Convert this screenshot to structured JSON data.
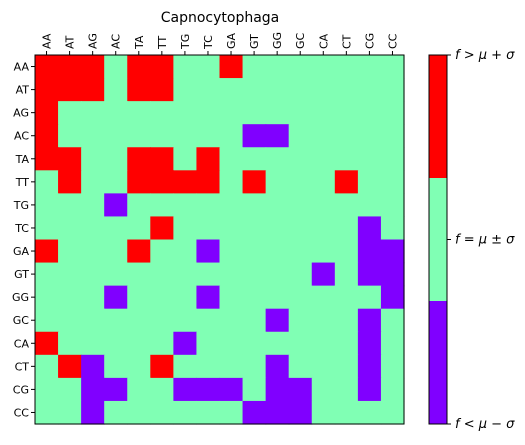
{
  "chart_data": {
    "type": "heatmap",
    "title": "Capnocytophaga",
    "x_categories": [
      "AA",
      "AT",
      "AG",
      "AC",
      "TA",
      "TT",
      "TG",
      "TC",
      "GA",
      "GT",
      "GG",
      "GC",
      "CA",
      "CT",
      "CG",
      "CC"
    ],
    "y_categories": [
      "AA",
      "AT",
      "AG",
      "AC",
      "TA",
      "TT",
      "TG",
      "TC",
      "GA",
      "GT",
      "GG",
      "GC",
      "CA",
      "CT",
      "CG",
      "CC"
    ],
    "value_encoding": {
      "-1": "f < μ − σ",
      "0": "f = μ ± σ",
      "1": "f > μ + σ"
    },
    "matrix": [
      [
        1,
        1,
        1,
        0,
        1,
        1,
        0,
        0,
        1,
        0,
        0,
        0,
        0,
        0,
        0,
        0
      ],
      [
        1,
        1,
        1,
        0,
        1,
        1,
        0,
        0,
        0,
        0,
        0,
        0,
        0,
        0,
        0,
        0
      ],
      [
        1,
        0,
        0,
        0,
        0,
        0,
        0,
        0,
        0,
        0,
        0,
        0,
        0,
        0,
        0,
        0
      ],
      [
        1,
        0,
        0,
        0,
        0,
        0,
        0,
        0,
        0,
        -1,
        -1,
        0,
        0,
        0,
        0,
        0
      ],
      [
        1,
        1,
        0,
        0,
        1,
        1,
        0,
        1,
        0,
        0,
        0,
        0,
        0,
        0,
        0,
        0
      ],
      [
        0,
        1,
        0,
        0,
        1,
        1,
        1,
        1,
        0,
        1,
        0,
        0,
        0,
        1,
        0,
        0
      ],
      [
        0,
        0,
        0,
        -1,
        0,
        0,
        0,
        0,
        0,
        0,
        0,
        0,
        0,
        0,
        0,
        0
      ],
      [
        0,
        0,
        0,
        0,
        0,
        1,
        0,
        0,
        0,
        0,
        0,
        0,
        0,
        0,
        -1,
        0
      ],
      [
        1,
        0,
        0,
        0,
        1,
        0,
        0,
        -1,
        0,
        0,
        0,
        0,
        0,
        0,
        -1,
        -1
      ],
      [
        0,
        0,
        0,
        0,
        0,
        0,
        0,
        0,
        0,
        0,
        0,
        0,
        -1,
        0,
        -1,
        -1
      ],
      [
        0,
        0,
        0,
        -1,
        0,
        0,
        0,
        -1,
        0,
        0,
        0,
        0,
        0,
        0,
        0,
        -1
      ],
      [
        0,
        0,
        0,
        0,
        0,
        0,
        0,
        0,
        0,
        0,
        -1,
        0,
        0,
        0,
        -1,
        0
      ],
      [
        1,
        0,
        0,
        0,
        0,
        0,
        -1,
        0,
        0,
        0,
        0,
        0,
        0,
        0,
        -1,
        0
      ],
      [
        0,
        1,
        -1,
        0,
        0,
        1,
        0,
        0,
        0,
        0,
        -1,
        0,
        0,
        0,
        -1,
        0
      ],
      [
        0,
        0,
        -1,
        -1,
        0,
        0,
        -1,
        -1,
        -1,
        0,
        -1,
        -1,
        0,
        0,
        -1,
        0
      ],
      [
        0,
        0,
        -1,
        0,
        0,
        0,
        0,
        0,
        0,
        -1,
        -1,
        -1,
        0,
        0,
        0,
        0
      ]
    ],
    "colors": {
      "low": "#8000ff",
      "mid": "#80ffb4",
      "high": "#ff0000"
    },
    "colorbar": {
      "labels": [
        "f > μ + σ",
        "f = μ ± σ",
        "f < μ − σ"
      ]
    }
  }
}
